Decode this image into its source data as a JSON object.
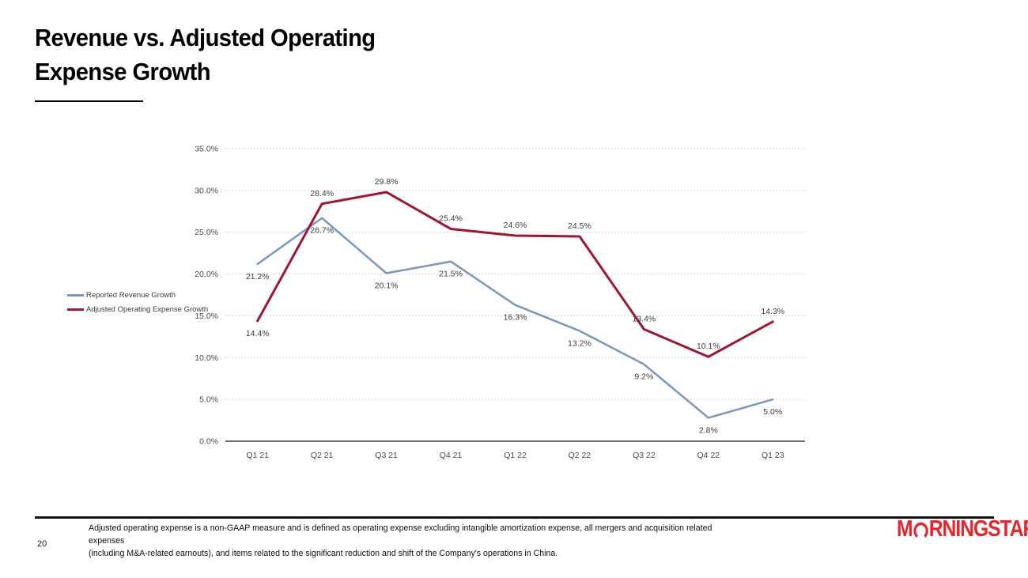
{
  "slide": {
    "title": "Revenue vs. Adjusted Operating\nExpense Growth",
    "page_number": "20",
    "footnote": "Adjusted operating expense is a non-GAAP measure and is defined as operating expense excluding intangible amortization expense, all mergers and acquisition related expenses\n(including M&A-related earnouts), and items related to the significant reduction and shift of the Company's operations in China.",
    "logo": {
      "brand": "Morningstar",
      "text_before_o": "M",
      "text_after_o": "RNINGSTAR",
      "registered_mark": "®",
      "color": "#e5262d"
    }
  },
  "chart_data": {
    "type": "line",
    "title": "Revenue vs. Adjusted Operating Expense Growth",
    "categories": [
      "Q1 21",
      "Q2 21",
      "Q3 21",
      "Q4 21",
      "Q1 22",
      "Q2 22",
      "Q3 22",
      "Q4 22",
      "Q1 23"
    ],
    "series": [
      {
        "name": "Reported Revenue Growth",
        "color": "#7b96c0",
        "line_width": 2.5,
        "values": [
          21.2,
          26.7,
          20.1,
          21.5,
          16.3,
          13.2,
          9.2,
          2.8,
          5.0
        ],
        "label_positions": [
          "below",
          "below",
          "below",
          "below",
          "below",
          "below",
          "below",
          "below",
          "below"
        ]
      },
      {
        "name": "Adjusted Operating Expense Growth",
        "color": "#a01532",
        "line_width": 3,
        "values": [
          14.4,
          28.4,
          29.8,
          25.4,
          24.6,
          24.5,
          13.4,
          10.1,
          14.3
        ],
        "label_positions": [
          "below",
          "above",
          "above",
          "above",
          "above",
          "above",
          "above",
          "above",
          "above"
        ]
      }
    ],
    "ylim": [
      0,
      35
    ],
    "yticks": [
      {
        "value": 0,
        "label": "0.0%"
      },
      {
        "value": 5,
        "label": "5.0%"
      },
      {
        "value": 10,
        "label": "10.0%"
      },
      {
        "value": 15,
        "label": "15.0%"
      },
      {
        "value": 20,
        "label": "20.0%"
      },
      {
        "value": 25,
        "label": "25.0%"
      },
      {
        "value": 30,
        "label": "30.0%"
      },
      {
        "value": 35,
        "label": "35.0%"
      }
    ],
    "grid": "horizontal-dotted",
    "grid_color": "#c9c9c9",
    "axis_color": "#404040",
    "legend_position": "left"
  }
}
